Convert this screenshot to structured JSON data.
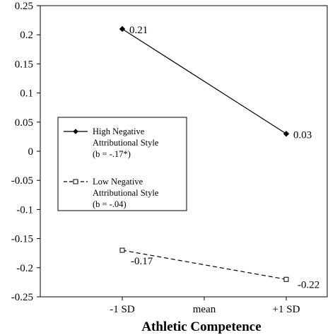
{
  "chart_data": {
    "type": "line",
    "xlabel": "Athletic Competence",
    "ylabel": "",
    "categories": [
      "-1 SD",
      "mean",
      "+1 SD"
    ],
    "ylim": [
      -0.25,
      0.25
    ],
    "yticks": [
      "0.25",
      "0.2",
      "0.15",
      "0.1",
      "0.05",
      "0",
      "-0.05",
      "-0.1",
      "-0.15",
      "-0.2",
      "-0.25"
    ],
    "grid": false,
    "legend_position": "left-middle",
    "series": [
      {
        "name_lines": [
          "High Negative",
          "Attributional Style",
          "(b = -.17*)"
        ],
        "x": [
          "-1 SD",
          "+1 SD"
        ],
        "values": [
          0.21,
          0.03
        ],
        "labels": [
          "0.21",
          "0.03"
        ],
        "line_style": "solid",
        "marker": "filled-diamond",
        "color": "#000000"
      },
      {
        "name_lines": [
          "Low Negative",
          "Attributional Style",
          "(b = -.04)"
        ],
        "x": [
          "-1 SD",
          "+1 SD"
        ],
        "values": [
          -0.17,
          -0.22
        ],
        "labels": [
          "-0.17",
          "-0.22"
        ],
        "line_style": "dashed",
        "marker": "open-square",
        "color": "#000000"
      }
    ]
  }
}
